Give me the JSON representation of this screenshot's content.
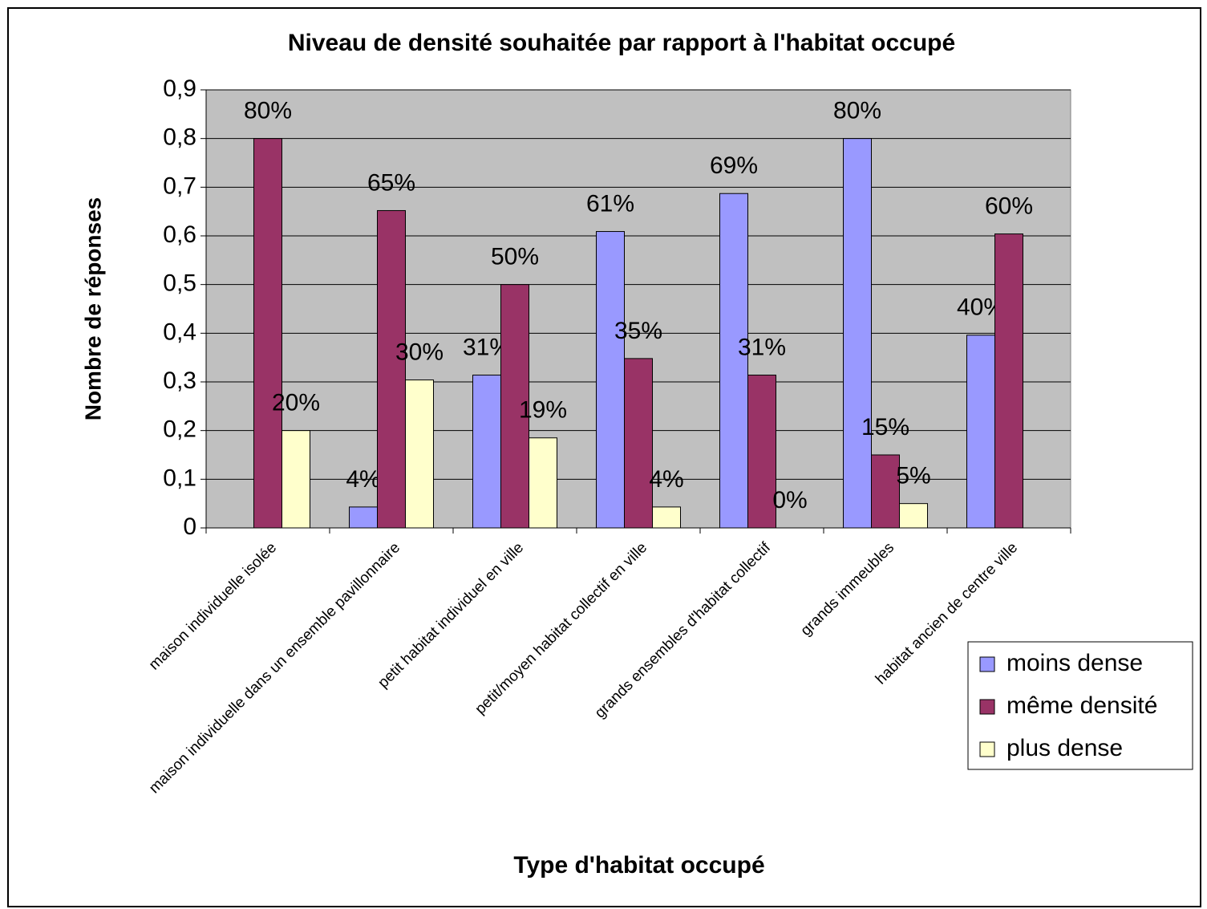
{
  "chart_data": {
    "type": "bar",
    "title": "Niveau de densité souhaitée par rapport à l'habitat occupé",
    "x_label": "Type d'habitat occupé",
    "y_label": "Nombre de réponses",
    "categories": [
      "maison individuelle isolée",
      "maison individuelle dans un ensemble pavillonnaire",
      "petit habitat individuel en ville",
      "petit/moyen habitat collectif en ville",
      "grands ensembles d'habitat collectif",
      "grands immeubles",
      "habitat ancien de centre ville"
    ],
    "series": [
      {
        "name": "moins dense",
        "color": "#9999ff",
        "values": [
          null,
          0.043,
          0.314,
          0.609,
          0.687,
          0.8,
          0.396
        ],
        "value_labels": [
          null,
          "4%",
          "31%",
          "61%",
          "69%",
          "80%",
          "40%"
        ]
      },
      {
        "name": "même densité",
        "color": "#993366",
        "values": [
          0.8,
          0.652,
          0.5,
          0.348,
          0.314,
          0.15,
          0.604
        ],
        "value_labels": [
          "80%",
          "65%",
          "50%",
          "35%",
          "31%",
          "15%",
          "60%"
        ]
      },
      {
        "name": "plus dense",
        "color": "#ffffcc",
        "values": [
          0.2,
          0.304,
          0.185,
          0.043,
          0,
          0.05,
          null
        ],
        "value_labels": [
          "20%",
          "30%",
          "19%",
          "4%",
          "0%",
          "5%",
          null
        ]
      }
    ],
    "ylim": [
      0,
      0.9
    ],
    "yticks": [
      0,
      {
        "value": 0.1,
        "label": "0,1"
      },
      {
        "value": 0.2,
        "label": "0,2"
      },
      {
        "value": 0.3,
        "label": "0,3"
      },
      {
        "value": 0.4,
        "label": "0,4"
      },
      {
        "value": 0.5,
        "label": "0,5"
      },
      {
        "value": 0.6,
        "label": "0,6"
      },
      {
        "value": 0.7,
        "label": "0,7"
      },
      {
        "value": 0.8,
        "label": "0,8"
      },
      {
        "value": 0.9,
        "label": "0,9"
      }
    ],
    "grid": true,
    "plot_background": "#c0c0c0",
    "legend": "right"
  }
}
